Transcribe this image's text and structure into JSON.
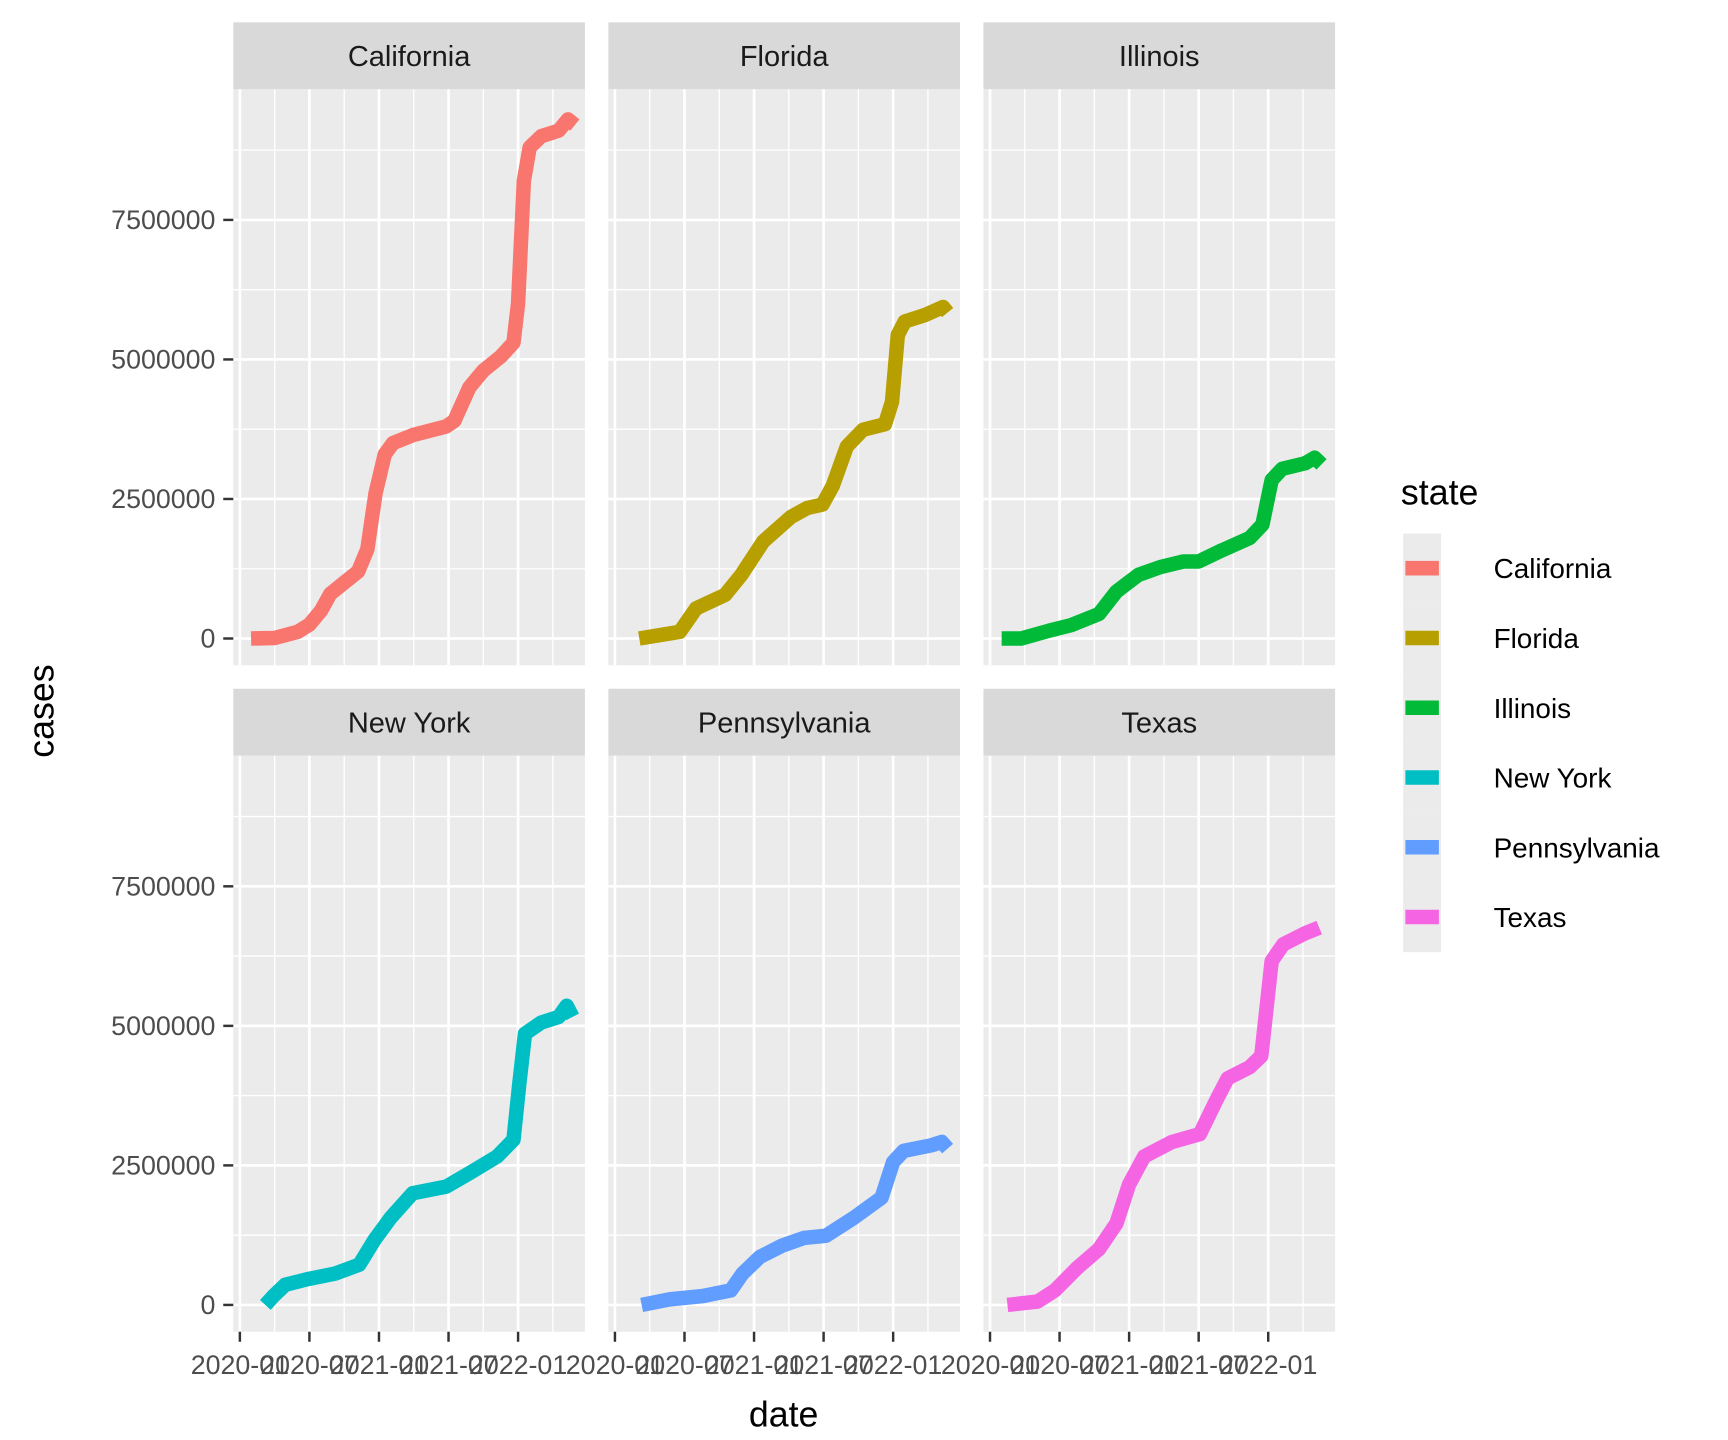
{
  "chart_data": {
    "type": "line",
    "facet": "state",
    "xlabel": "date",
    "ylabel": "cases",
    "x_ticks": [
      "2020-01",
      "2020-07",
      "2021-01",
      "2021-07",
      "2022-01"
    ],
    "y_ticks": [
      0,
      2500000,
      5000000,
      7500000
    ],
    "y_tick_labels": [
      "0",
      "2500000",
      "5000000",
      "7500000"
    ],
    "ylim": [
      -480000,
      9840000
    ],
    "xlim": [
      "2019-12-14",
      "2022-06-24"
    ],
    "grid": true,
    "legend": {
      "title": "state",
      "position": "right"
    },
    "series": [
      {
        "name": "California",
        "color": "#F8766D",
        "points": [
          [
            "2020-01-30",
            0
          ],
          [
            "2020-04-01",
            10000
          ],
          [
            "2020-06-01",
            120000
          ],
          [
            "2020-07-01",
            250000
          ],
          [
            "2020-08-01",
            500000
          ],
          [
            "2020-08-25",
            800000
          ],
          [
            "2020-10-01",
            1000000
          ],
          [
            "2020-11-07",
            1200000
          ],
          [
            "2020-12-01",
            1600000
          ],
          [
            "2020-12-22",
            2600000
          ],
          [
            "2021-01-16",
            3300000
          ],
          [
            "2021-02-07",
            3500000
          ],
          [
            "2021-04-01",
            3650000
          ],
          [
            "2021-06-25",
            3800000
          ],
          [
            "2021-07-16",
            3900000
          ],
          [
            "2021-08-25",
            4500000
          ],
          [
            "2021-10-01",
            4800000
          ],
          [
            "2021-11-16",
            5050000
          ],
          [
            "2021-12-19",
            5300000
          ],
          [
            "2022-01-01",
            6000000
          ],
          [
            "2022-01-16",
            8200000
          ],
          [
            "2022-02-01",
            8800000
          ],
          [
            "2022-03-01",
            9000000
          ],
          [
            "2022-04-16",
            9100000
          ],
          [
            "2022-05-10",
            9300000
          ],
          [
            "2022-05-28",
            9200000
          ]
        ]
      },
      {
        "name": "Florida",
        "color": "#B79F00",
        "points": [
          [
            "2020-03-04",
            0
          ],
          [
            "2020-06-19",
            120000
          ],
          [
            "2020-08-01",
            540000
          ],
          [
            "2020-10-16",
            780000
          ],
          [
            "2020-11-28",
            1140000
          ],
          [
            "2021-01-25",
            1740000
          ],
          [
            "2021-04-07",
            2180000
          ],
          [
            "2021-05-19",
            2340000
          ],
          [
            "2021-06-28",
            2400000
          ],
          [
            "2021-07-25",
            2740000
          ],
          [
            "2021-09-01",
            3440000
          ],
          [
            "2021-10-13",
            3740000
          ],
          [
            "2021-12-10",
            3840000
          ],
          [
            "2021-12-28",
            4240000
          ],
          [
            "2022-01-13",
            5440000
          ],
          [
            "2022-02-01",
            5680000
          ],
          [
            "2022-03-25",
            5800000
          ],
          [
            "2022-05-10",
            5940000
          ],
          [
            "2022-05-22",
            5840000
          ]
        ]
      },
      {
        "name": "Illinois",
        "color": "#00BA38",
        "points": [
          [
            "2020-02-01",
            0
          ],
          [
            "2020-03-22",
            0
          ],
          [
            "2020-06-04",
            140000
          ],
          [
            "2020-08-01",
            240000
          ],
          [
            "2020-10-13",
            440000
          ],
          [
            "2020-11-28",
            840000
          ],
          [
            "2021-01-25",
            1140000
          ],
          [
            "2021-03-22",
            1280000
          ],
          [
            "2021-05-22",
            1380000
          ],
          [
            "2021-07-01",
            1380000
          ],
          [
            "2021-09-01",
            1580000
          ],
          [
            "2021-11-13",
            1800000
          ],
          [
            "2021-12-16",
            2040000
          ],
          [
            "2022-01-10",
            2840000
          ],
          [
            "2022-02-07",
            3040000
          ],
          [
            "2022-04-07",
            3140000
          ],
          [
            "2022-05-01",
            3240000
          ],
          [
            "2022-05-19",
            3120000
          ]
        ]
      },
      {
        "name": "New York",
        "color": "#00BFC4",
        "points": [
          [
            "2020-03-07",
            0
          ],
          [
            "2020-03-28",
            160000
          ],
          [
            "2020-04-28",
            360000
          ],
          [
            "2020-06-25",
            460000
          ],
          [
            "2020-09-07",
            560000
          ],
          [
            "2020-11-10",
            720000
          ],
          [
            "2020-12-19",
            1160000
          ],
          [
            "2021-02-01",
            1560000
          ],
          [
            "2021-03-28",
            2000000
          ],
          [
            "2021-06-25",
            2120000
          ],
          [
            "2021-08-25",
            2360000
          ],
          [
            "2021-11-07",
            2660000
          ],
          [
            "2021-12-19",
            2960000
          ],
          [
            "2022-01-04",
            3960000
          ],
          [
            "2022-01-19",
            4860000
          ],
          [
            "2022-03-01",
            5060000
          ],
          [
            "2022-04-16",
            5160000
          ],
          [
            "2022-05-07",
            5360000
          ],
          [
            "2022-05-22",
            5160000
          ]
        ]
      },
      {
        "name": "Pennsylvania",
        "color": "#619CFF",
        "points": [
          [
            "2020-03-10",
            0
          ],
          [
            "2020-05-22",
            100000
          ],
          [
            "2020-08-19",
            160000
          ],
          [
            "2020-11-01",
            260000
          ],
          [
            "2020-12-01",
            560000
          ],
          [
            "2021-01-16",
            860000
          ],
          [
            "2021-03-13",
            1060000
          ],
          [
            "2021-05-10",
            1200000
          ],
          [
            "2021-07-07",
            1240000
          ],
          [
            "2021-09-19",
            1560000
          ],
          [
            "2021-12-01",
            1920000
          ],
          [
            "2022-01-01",
            2560000
          ],
          [
            "2022-01-28",
            2760000
          ],
          [
            "2022-04-10",
            2860000
          ],
          [
            "2022-05-07",
            2920000
          ],
          [
            "2022-05-22",
            2800000
          ]
        ]
      },
      {
        "name": "Texas",
        "color": "#F564E3",
        "points": [
          [
            "2020-02-16",
            0
          ],
          [
            "2020-05-04",
            60000
          ],
          [
            "2020-06-19",
            260000
          ],
          [
            "2020-08-16",
            660000
          ],
          [
            "2020-10-13",
            1000000
          ],
          [
            "2020-11-28",
            1460000
          ],
          [
            "2021-01-01",
            2160000
          ],
          [
            "2021-02-10",
            2660000
          ],
          [
            "2021-04-22",
            2920000
          ],
          [
            "2021-07-04",
            3060000
          ],
          [
            "2021-08-16",
            3660000
          ],
          [
            "2021-09-16",
            4060000
          ],
          [
            "2021-11-13",
            4260000
          ],
          [
            "2021-12-13",
            4460000
          ],
          [
            "2022-01-10",
            6160000
          ],
          [
            "2022-02-10",
            6460000
          ],
          [
            "2022-04-07",
            6660000
          ],
          [
            "2022-05-13",
            6760000
          ]
        ]
      }
    ]
  }
}
